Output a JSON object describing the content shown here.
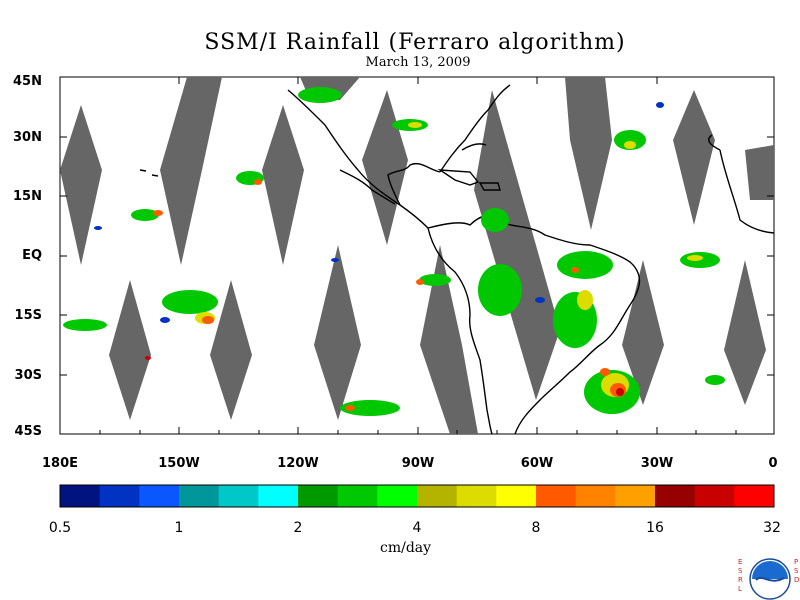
{
  "title": "SSM/I Rainfall (Ferraro algorithm)",
  "subtitle": "March 13, 2009",
  "lat_labels": [
    "45N",
    "30N",
    "15N",
    "EQ",
    "15S",
    "30S",
    "45S"
  ],
  "lon_labels": [
    "180E",
    "150W",
    "120W",
    "90W",
    "60W",
    "30W",
    "0"
  ],
  "colorbar": {
    "labels": [
      "0.5",
      "1",
      "2",
      "4",
      "8",
      "16",
      "32"
    ],
    "units": "cm/day",
    "colors": [
      "#00137f",
      "#0033c2",
      "#0a56ff",
      "#00969a",
      "#00c8c8",
      "#00ffff",
      "#009a00",
      "#00c800",
      "#00ff00",
      "#b4b400",
      "#dcdc00",
      "#ffff00",
      "#ff5a00",
      "#ff8200",
      "#ffa000",
      "#960000",
      "#c80000",
      "#ff0000"
    ]
  },
  "logo": {
    "left_letters": "ESRL",
    "right_letters": "PSD",
    "text": "NOAA"
  }
}
